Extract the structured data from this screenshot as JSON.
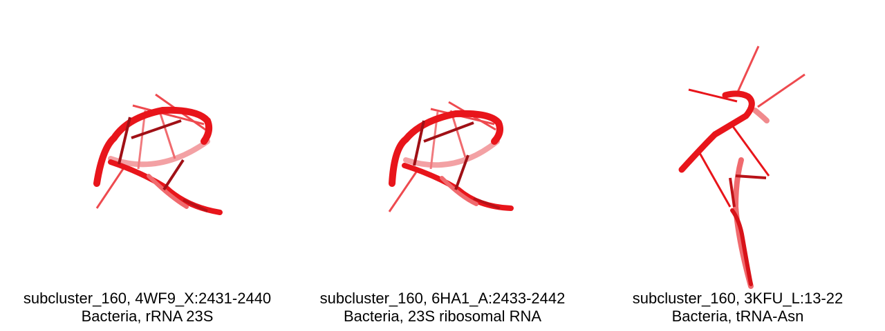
{
  "structure_color": "#e8151b",
  "panels": [
    {
      "id": "p1",
      "line1": "subcluster_160, 4WF9_X:2431-2440",
      "line2": "Bacteria, rRNA 23S"
    },
    {
      "id": "p2",
      "line1": "subcluster_160, 6HA1_A:2433-2442",
      "line2": "Bacteria, 23S ribosomal RNA"
    },
    {
      "id": "p3",
      "line1": "subcluster_160, 3KFU_L:13-22",
      "line2": "Bacteria, tRNA-Asn"
    }
  ]
}
